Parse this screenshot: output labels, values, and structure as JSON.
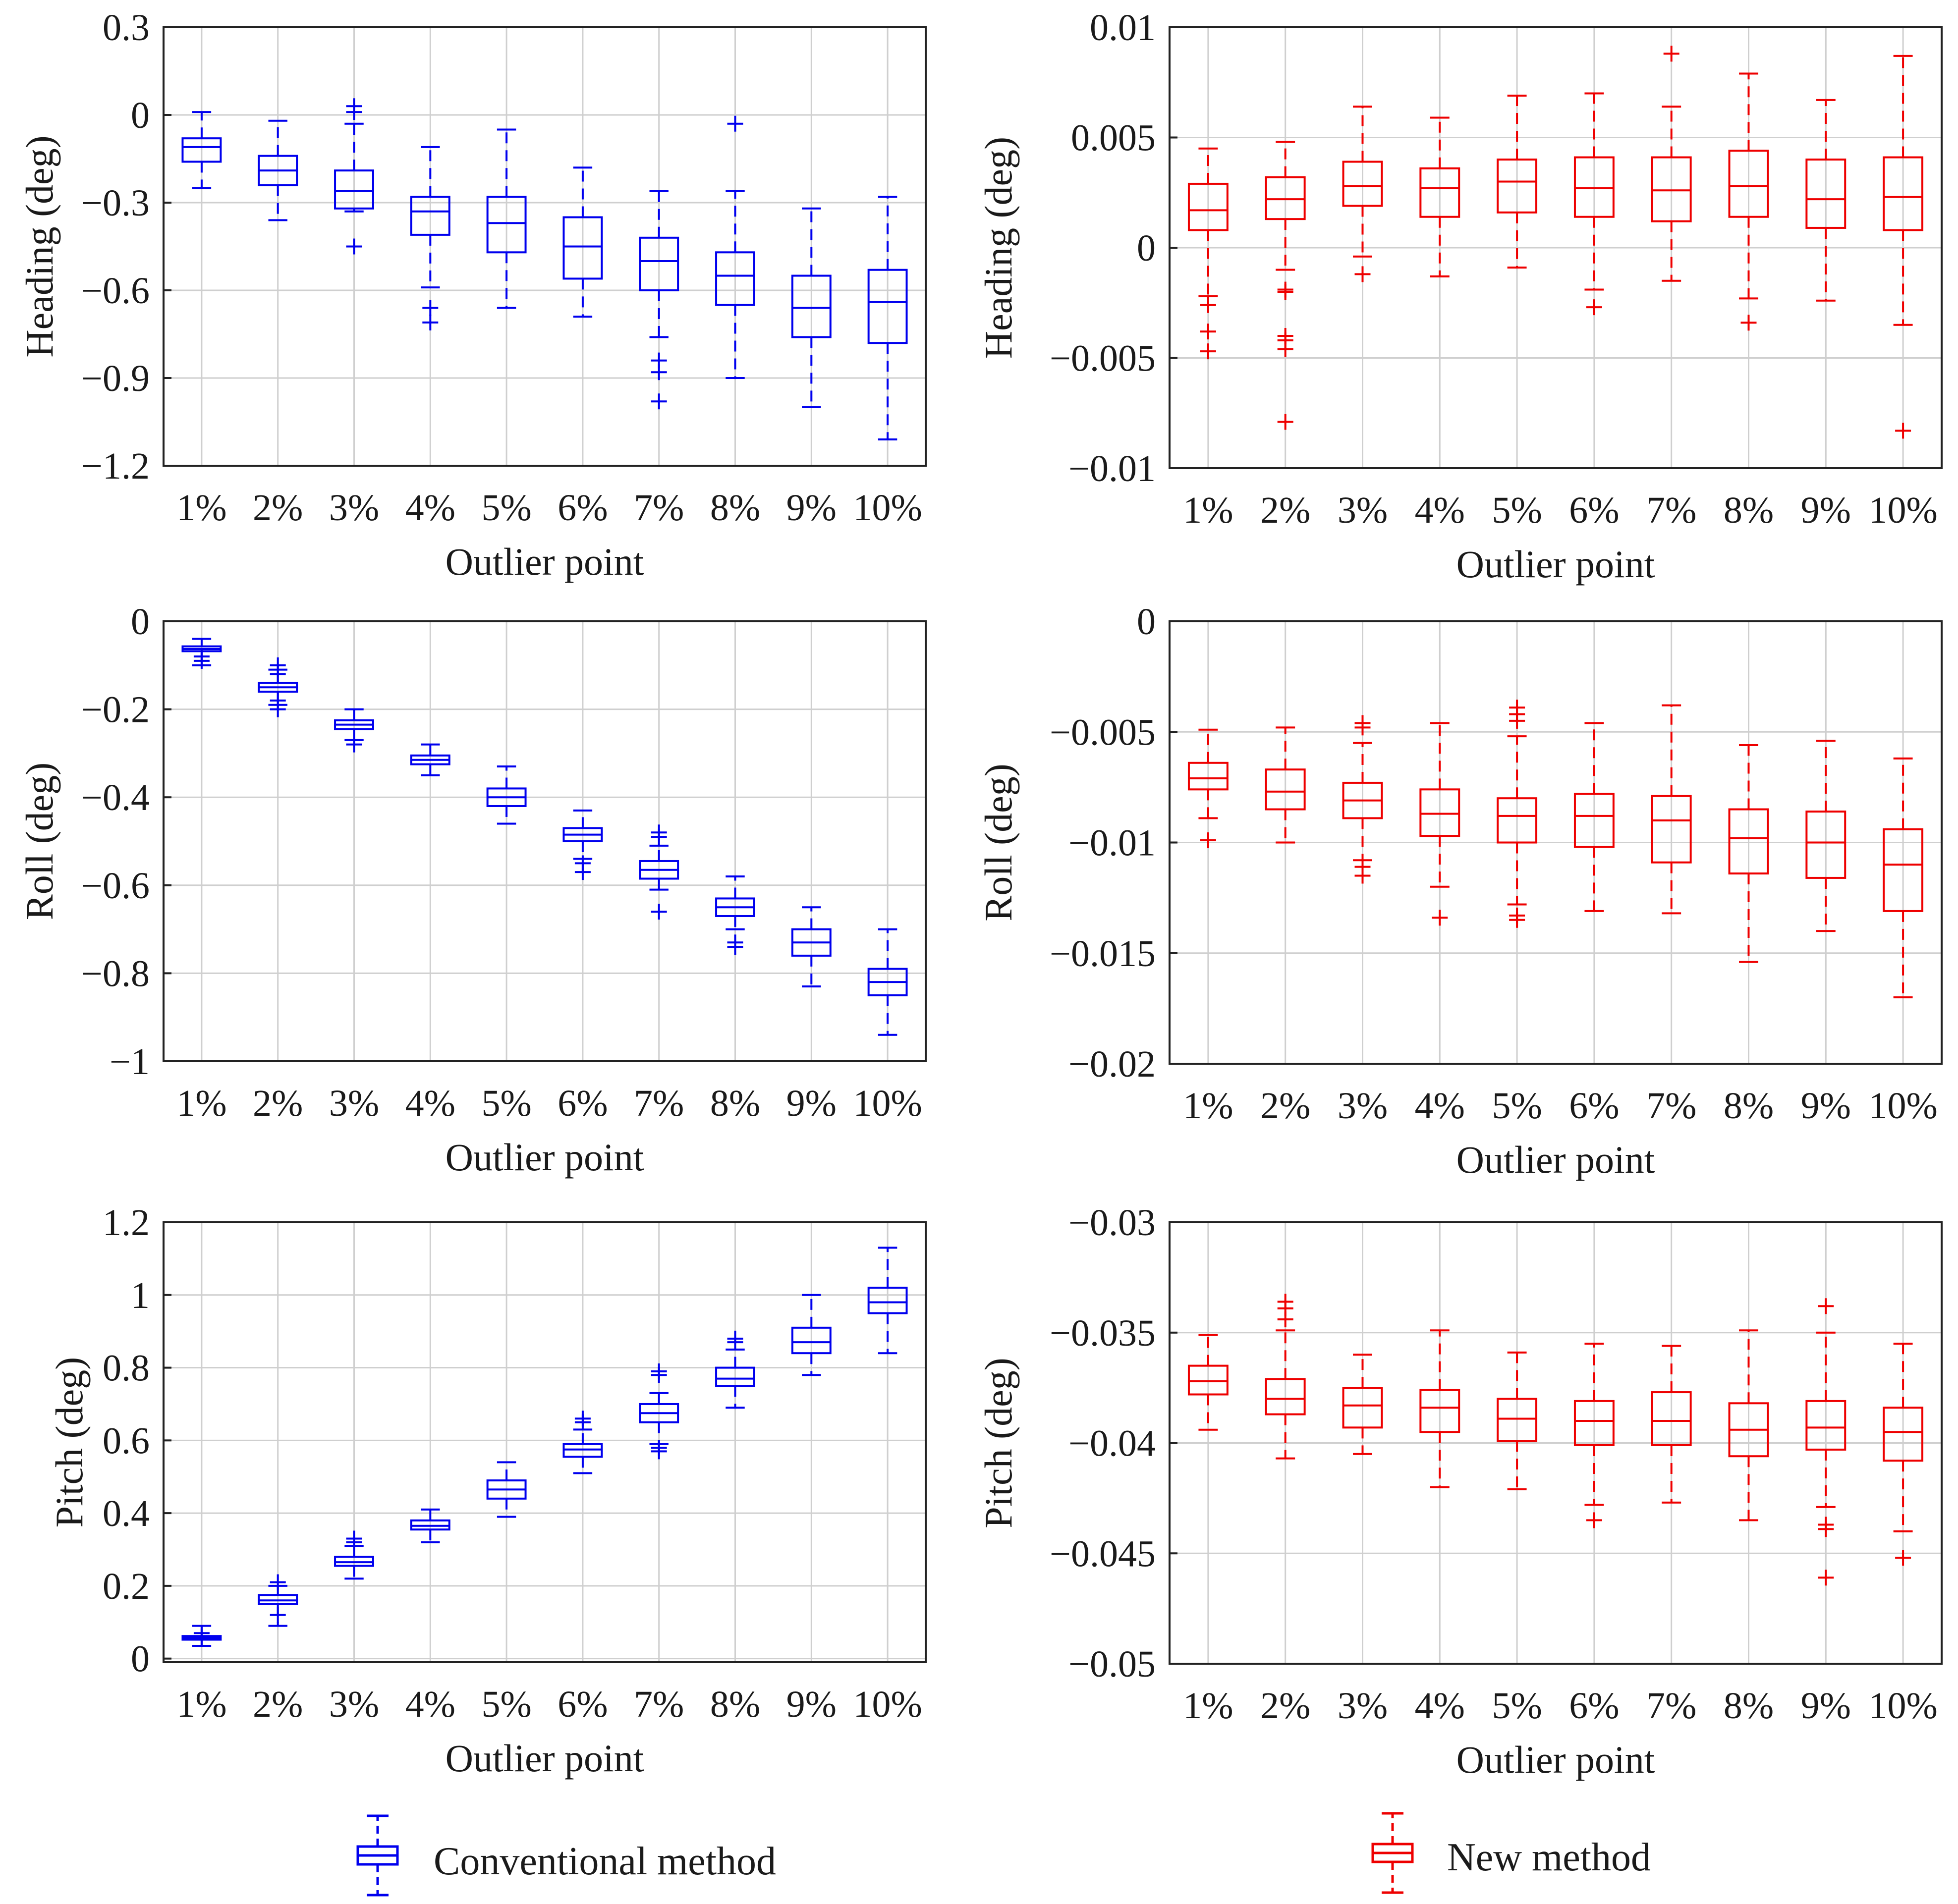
{
  "legend": {
    "conventional_label": "Conventional method",
    "new_label": "New method"
  },
  "colors": {
    "conventional": "#0000ee",
    "new": "#ee0000"
  },
  "chart_data": [
    {
      "id": "conv-heading",
      "type": "box",
      "method": "conventional",
      "title": "",
      "xlabel": "Outlier point",
      "ylabel": "Heading (deg)",
      "categories": [
        "1%",
        "2%",
        "3%",
        "4%",
        "5%",
        "6%",
        "7%",
        "8%",
        "9%",
        "10%"
      ],
      "ylim": [
        -1.2,
        0.3
      ],
      "yticks": [
        -1.2,
        -0.9,
        -0.6,
        -0.3,
        0,
        0.3
      ],
      "ytick_labels": [
        "−1.2",
        "−0.9",
        "−0.6",
        "−0.3",
        "0",
        "0.3"
      ],
      "grid": true,
      "boxes": [
        {
          "whisker_low": -0.25,
          "q1": -0.16,
          "median": -0.11,
          "q3": -0.08,
          "whisker_high": 0.01,
          "outliers": []
        },
        {
          "whisker_low": -0.36,
          "q1": -0.24,
          "median": -0.19,
          "q3": -0.14,
          "whisker_high": -0.02,
          "outliers": []
        },
        {
          "whisker_low": -0.33,
          "q1": -0.32,
          "median": -0.26,
          "q3": -0.19,
          "whisker_high": -0.03,
          "outliers": [
            0.01,
            0.03,
            -0.45
          ]
        },
        {
          "whisker_low": -0.59,
          "q1": -0.41,
          "median": -0.33,
          "q3": -0.28,
          "whisker_high": -0.11,
          "outliers": [
            -0.66,
            -0.71
          ]
        },
        {
          "whisker_low": -0.66,
          "q1": -0.47,
          "median": -0.37,
          "q3": -0.28,
          "whisker_high": -0.05,
          "outliers": []
        },
        {
          "whisker_low": -0.69,
          "q1": -0.56,
          "median": -0.45,
          "q3": -0.35,
          "whisker_high": -0.18,
          "outliers": []
        },
        {
          "whisker_low": -0.76,
          "q1": -0.6,
          "median": -0.5,
          "q3": -0.42,
          "whisker_high": -0.26,
          "outliers": [
            -0.84,
            -0.88,
            -0.98
          ]
        },
        {
          "whisker_low": -0.9,
          "q1": -0.65,
          "median": -0.55,
          "q3": -0.47,
          "whisker_high": -0.26,
          "outliers": [
            -0.03
          ]
        },
        {
          "whisker_low": -1.0,
          "q1": -0.76,
          "median": -0.66,
          "q3": -0.55,
          "whisker_high": -0.32,
          "outliers": []
        },
        {
          "whisker_low": -1.11,
          "q1": -0.78,
          "median": -0.64,
          "q3": -0.53,
          "whisker_high": -0.28,
          "outliers": []
        }
      ]
    },
    {
      "id": "new-heading",
      "type": "box",
      "method": "new",
      "title": "",
      "xlabel": "Outlier point",
      "ylabel": "Heading (deg)",
      "categories": [
        "1%",
        "2%",
        "3%",
        "4%",
        "5%",
        "6%",
        "7%",
        "8%",
        "9%",
        "10%"
      ],
      "ylim": [
        -0.01,
        0.01
      ],
      "yticks": [
        -0.01,
        -0.005,
        0,
        0.005,
        0.01
      ],
      "ytick_labels": [
        "−0.01",
        "−0.005",
        "0",
        "0.005",
        "0.01"
      ],
      "grid": true,
      "boxes": [
        {
          "whisker_low": -0.0022,
          "q1": 0.0008,
          "median": 0.0017,
          "q3": 0.0029,
          "whisker_high": 0.0045,
          "outliers": [
            -0.0026,
            -0.0038,
            -0.0047
          ]
        },
        {
          "whisker_low": -0.001,
          "q1": 0.0013,
          "median": 0.0022,
          "q3": 0.0032,
          "whisker_high": 0.0048,
          "outliers": [
            -0.0019,
            -0.002,
            -0.004,
            -0.0042,
            -0.0046,
            -0.0079
          ]
        },
        {
          "whisker_low": -0.0004,
          "q1": 0.0019,
          "median": 0.0028,
          "q3": 0.0039,
          "whisker_high": 0.0064,
          "outliers": [
            -0.0012
          ]
        },
        {
          "whisker_low": -0.0013,
          "q1": 0.0014,
          "median": 0.0027,
          "q3": 0.0036,
          "whisker_high": 0.0059,
          "outliers": []
        },
        {
          "whisker_low": -0.0009,
          "q1": 0.0016,
          "median": 0.003,
          "q3": 0.004,
          "whisker_high": 0.0069,
          "outliers": []
        },
        {
          "whisker_low": -0.0019,
          "q1": 0.0014,
          "median": 0.0027,
          "q3": 0.0041,
          "whisker_high": 0.007,
          "outliers": [
            -0.0027
          ]
        },
        {
          "whisker_low": -0.0015,
          "q1": 0.0012,
          "median": 0.0026,
          "q3": 0.0041,
          "whisker_high": 0.0064,
          "outliers": [
            0.0088
          ]
        },
        {
          "whisker_low": -0.0023,
          "q1": 0.0014,
          "median": 0.0028,
          "q3": 0.0044,
          "whisker_high": 0.0079,
          "outliers": [
            -0.0034
          ]
        },
        {
          "whisker_low": -0.0024,
          "q1": 0.0009,
          "median": 0.0022,
          "q3": 0.004,
          "whisker_high": 0.0067,
          "outliers": []
        },
        {
          "whisker_low": -0.0035,
          "q1": 0.0008,
          "median": 0.0023,
          "q3": 0.0041,
          "whisker_high": 0.0087,
          "outliers": [
            -0.0083
          ]
        }
      ]
    },
    {
      "id": "conv-roll",
      "type": "box",
      "method": "conventional",
      "title": "",
      "xlabel": "Outlier point",
      "ylabel": "Roll (deg)",
      "categories": [
        "1%",
        "2%",
        "3%",
        "4%",
        "5%",
        "6%",
        "7%",
        "8%",
        "9%",
        "10%"
      ],
      "ylim": [
        -1,
        0
      ],
      "yticks": [
        -1,
        -0.8,
        -0.6,
        -0.4,
        -0.2,
        0
      ],
      "ytick_labels": [
        "−1",
        "−0.8",
        "−0.6",
        "−0.4",
        "−0.2",
        "0"
      ],
      "grid": true,
      "boxes": [
        {
          "whisker_low": -0.1,
          "q1": -0.068,
          "median": -0.063,
          "q3": -0.057,
          "whisker_high": -0.04,
          "outliers": [
            -0.08,
            -0.09
          ]
        },
        {
          "whisker_low": -0.19,
          "q1": -0.16,
          "median": -0.15,
          "q3": -0.14,
          "whisker_high": -0.11,
          "outliers": [
            -0.1,
            -0.12,
            -0.18,
            -0.2
          ]
        },
        {
          "whisker_low": -0.27,
          "q1": -0.245,
          "median": -0.235,
          "q3": -0.225,
          "whisker_high": -0.2,
          "outliers": [
            -0.27,
            -0.28
          ]
        },
        {
          "whisker_low": -0.35,
          "q1": -0.325,
          "median": -0.315,
          "q3": -0.305,
          "whisker_high": -0.28,
          "outliers": []
        },
        {
          "whisker_low": -0.46,
          "q1": -0.42,
          "median": -0.4,
          "q3": -0.38,
          "whisker_high": -0.33,
          "outliers": []
        },
        {
          "whisker_low": -0.54,
          "q1": -0.5,
          "median": -0.485,
          "q3": -0.47,
          "whisker_high": -0.43,
          "outliers": [
            -0.55,
            -0.57
          ]
        },
        {
          "whisker_low": -0.61,
          "q1": -0.585,
          "median": -0.565,
          "q3": -0.545,
          "whisker_high": -0.51,
          "outliers": [
            -0.48,
            -0.49,
            -0.66
          ]
        },
        {
          "whisker_low": -0.7,
          "q1": -0.67,
          "median": -0.65,
          "q3": -0.63,
          "whisker_high": -0.58,
          "outliers": [
            -0.73,
            -0.74
          ]
        },
        {
          "whisker_low": -0.83,
          "q1": -0.76,
          "median": -0.73,
          "q3": -0.7,
          "whisker_high": -0.65,
          "outliers": []
        },
        {
          "whisker_low": -0.94,
          "q1": -0.85,
          "median": -0.82,
          "q3": -0.79,
          "whisker_high": -0.7,
          "outliers": []
        }
      ]
    },
    {
      "id": "new-roll",
      "type": "box",
      "method": "new",
      "title": "",
      "xlabel": "Outlier point",
      "ylabel": "Roll (deg)",
      "categories": [
        "1%",
        "2%",
        "3%",
        "4%",
        "5%",
        "6%",
        "7%",
        "8%",
        "9%",
        "10%"
      ],
      "ylim": [
        -0.02,
        0
      ],
      "yticks": [
        -0.02,
        -0.015,
        -0.01,
        -0.005,
        0
      ],
      "ytick_labels": [
        "−0.02",
        "−0.015",
        "−0.01",
        "−0.005",
        "0"
      ],
      "grid": true,
      "boxes": [
        {
          "whisker_low": -0.0089,
          "q1": -0.0076,
          "median": -0.0071,
          "q3": -0.0064,
          "whisker_high": -0.0049,
          "outliers": [
            -0.0099
          ]
        },
        {
          "whisker_low": -0.01,
          "q1": -0.0085,
          "median": -0.0077,
          "q3": -0.0067,
          "whisker_high": -0.0048,
          "outliers": []
        },
        {
          "whisker_low": -0.0108,
          "q1": -0.0089,
          "median": -0.0081,
          "q3": -0.0073,
          "whisker_high": -0.0055,
          "outliers": [
            -0.0046,
            -0.0048,
            -0.0111,
            -0.0115
          ]
        },
        {
          "whisker_low": -0.012,
          "q1": -0.0097,
          "median": -0.0087,
          "q3": -0.0076,
          "whisker_high": -0.0046,
          "outliers": [
            -0.0134
          ]
        },
        {
          "whisker_low": -0.0128,
          "q1": -0.01,
          "median": -0.0088,
          "q3": -0.008,
          "whisker_high": -0.0052,
          "outliers": [
            -0.0039,
            -0.0042,
            -0.0045,
            -0.0133,
            -0.0135
          ]
        },
        {
          "whisker_low": -0.0131,
          "q1": -0.0102,
          "median": -0.0088,
          "q3": -0.0078,
          "whisker_high": -0.0046,
          "outliers": []
        },
        {
          "whisker_low": -0.0132,
          "q1": -0.0109,
          "median": -0.009,
          "q3": -0.0079,
          "whisker_high": -0.0038,
          "outliers": []
        },
        {
          "whisker_low": -0.0154,
          "q1": -0.0114,
          "median": -0.0098,
          "q3": -0.0085,
          "whisker_high": -0.0056,
          "outliers": []
        },
        {
          "whisker_low": -0.014,
          "q1": -0.0116,
          "median": -0.01,
          "q3": -0.0086,
          "whisker_high": -0.0054,
          "outliers": []
        },
        {
          "whisker_low": -0.017,
          "q1": -0.0131,
          "median": -0.011,
          "q3": -0.0094,
          "whisker_high": -0.0062,
          "outliers": []
        }
      ]
    },
    {
      "id": "conv-pitch",
      "type": "box",
      "method": "conventional",
      "title": "",
      "xlabel": "Outlier point",
      "ylabel": "Pitch (deg)",
      "categories": [
        "1%",
        "2%",
        "3%",
        "4%",
        "5%",
        "6%",
        "7%",
        "8%",
        "9%",
        "10%"
      ],
      "ylim": [
        -0.01,
        1.2
      ],
      "yticks": [
        0,
        0.2,
        0.4,
        0.6,
        0.8,
        1,
        1.2
      ],
      "ytick_labels": [
        "0",
        "0.2",
        "0.4",
        "0.6",
        "0.8",
        "1",
        "1.2"
      ],
      "grid": true,
      "boxes": [
        {
          "whisker_low": 0.035,
          "q1": 0.052,
          "median": 0.057,
          "q3": 0.062,
          "whisker_high": 0.09,
          "outliers": [
            0.06,
            0.07
          ]
        },
        {
          "whisker_low": 0.09,
          "q1": 0.15,
          "median": 0.16,
          "q3": 0.175,
          "whisker_high": 0.2,
          "outliers": [
            0.12,
            0.21
          ]
        },
        {
          "whisker_low": 0.22,
          "q1": 0.255,
          "median": 0.265,
          "q3": 0.28,
          "whisker_high": 0.31,
          "outliers": [
            0.32,
            0.33
          ]
        },
        {
          "whisker_low": 0.32,
          "q1": 0.355,
          "median": 0.365,
          "q3": 0.38,
          "whisker_high": 0.41,
          "outliers": []
        },
        {
          "whisker_low": 0.39,
          "q1": 0.44,
          "median": 0.465,
          "q3": 0.49,
          "whisker_high": 0.54,
          "outliers": []
        },
        {
          "whisker_low": 0.51,
          "q1": 0.555,
          "median": 0.575,
          "q3": 0.59,
          "whisker_high": 0.63,
          "outliers": [
            0.65,
            0.66
          ]
        },
        {
          "whisker_low": 0.59,
          "q1": 0.65,
          "median": 0.675,
          "q3": 0.7,
          "whisker_high": 0.73,
          "outliers": [
            0.57,
            0.58,
            0.78,
            0.79
          ]
        },
        {
          "whisker_low": 0.69,
          "q1": 0.75,
          "median": 0.77,
          "q3": 0.8,
          "whisker_high": 0.85,
          "outliers": [
            0.87,
            0.88
          ]
        },
        {
          "whisker_low": 0.78,
          "q1": 0.84,
          "median": 0.87,
          "q3": 0.91,
          "whisker_high": 1.0,
          "outliers": []
        },
        {
          "whisker_low": 0.84,
          "q1": 0.95,
          "median": 0.98,
          "q3": 1.02,
          "whisker_high": 1.13,
          "outliers": []
        }
      ]
    },
    {
      "id": "new-pitch",
      "type": "box",
      "method": "new",
      "title": "",
      "xlabel": "Outlier point",
      "ylabel": "Pitch (deg)",
      "categories": [
        "1%",
        "2%",
        "3%",
        "4%",
        "5%",
        "6%",
        "7%",
        "8%",
        "9%",
        "10%"
      ],
      "ylim": [
        -0.05,
        -0.03
      ],
      "yticks": [
        -0.05,
        -0.045,
        -0.04,
        -0.035,
        -0.03
      ],
      "ytick_labels": [
        "−0.05",
        "−0.045",
        "−0.04",
        "−0.035",
        "−0.03"
      ],
      "grid": true,
      "boxes": [
        {
          "whisker_low": -0.0394,
          "q1": -0.0378,
          "median": -0.0372,
          "q3": -0.0365,
          "whisker_high": -0.0351,
          "outliers": []
        },
        {
          "whisker_low": -0.0407,
          "q1": -0.0387,
          "median": -0.038,
          "q3": -0.0371,
          "whisker_high": -0.0349,
          "outliers": [
            -0.0336,
            -0.0339,
            -0.0344
          ]
        },
        {
          "whisker_low": -0.0405,
          "q1": -0.0393,
          "median": -0.0383,
          "q3": -0.0375,
          "whisker_high": -0.036,
          "outliers": []
        },
        {
          "whisker_low": -0.042,
          "q1": -0.0395,
          "median": -0.0384,
          "q3": -0.0376,
          "whisker_high": -0.0349,
          "outliers": []
        },
        {
          "whisker_low": -0.0421,
          "q1": -0.0399,
          "median": -0.0389,
          "q3": -0.038,
          "whisker_high": -0.0359,
          "outliers": []
        },
        {
          "whisker_low": -0.0428,
          "q1": -0.0401,
          "median": -0.039,
          "q3": -0.0381,
          "whisker_high": -0.0355,
          "outliers": [
            -0.0435
          ]
        },
        {
          "whisker_low": -0.0427,
          "q1": -0.0401,
          "median": -0.039,
          "q3": -0.0377,
          "whisker_high": -0.0356,
          "outliers": []
        },
        {
          "whisker_low": -0.0435,
          "q1": -0.0406,
          "median": -0.0394,
          "q3": -0.0382,
          "whisker_high": -0.0349,
          "outliers": []
        },
        {
          "whisker_low": -0.0429,
          "q1": -0.0403,
          "median": -0.0393,
          "q3": -0.0381,
          "whisker_high": -0.035,
          "outliers": [
            -0.0338,
            -0.0437,
            -0.0439,
            -0.0461
          ]
        },
        {
          "whisker_low": -0.044,
          "q1": -0.0408,
          "median": -0.0395,
          "q3": -0.0384,
          "whisker_high": -0.0355,
          "outliers": [
            -0.0452
          ]
        }
      ]
    }
  ]
}
